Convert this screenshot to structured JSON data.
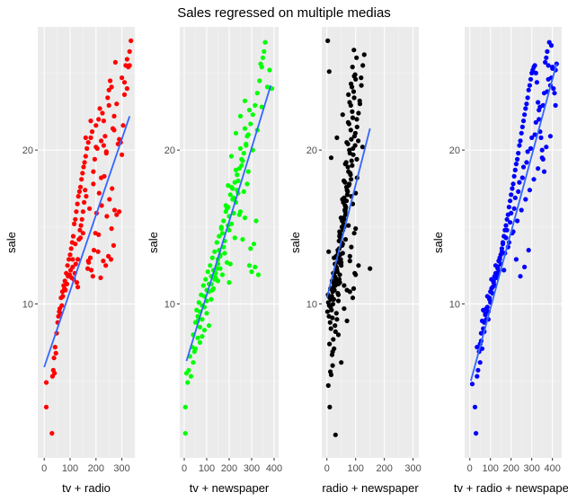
{
  "title": "Sales regressed on multiple medias",
  "colors": {
    "panel_bg": "#ebebeb",
    "grid_major": "#ffffff",
    "grid_minor": "#f5f5f5",
    "tick_text": "#4d4d4d",
    "axis_text": "#000000",
    "trend_line": "#3366ff"
  },
  "chart_data": [
    {
      "type": "scatter",
      "xlabel": "tv + radio",
      "ylabel": "sale",
      "point_color": "#ff0000",
      "xlim": [
        -25,
        350
      ],
      "ylim": [
        0,
        28
      ],
      "xticks": [
        0,
        100,
        200,
        300
      ],
      "xtick_labels": [
        "0",
        "100",
        "200",
        "300"
      ],
      "yticks": [
        10,
        20
      ],
      "ytick_labels": [
        "10",
        "20"
      ],
      "fit_line": {
        "x": [
          0,
          330
        ],
        "y": [
          5.9,
          22.2
        ]
      },
      "x": [
        8,
        8,
        30,
        32,
        35,
        38,
        40,
        42,
        45,
        48,
        52,
        55,
        58,
        60,
        62,
        65,
        68,
        70,
        72,
        75,
        78,
        80,
        82,
        85,
        88,
        90,
        92,
        95,
        98,
        100,
        102,
        104,
        106,
        108,
        110,
        112,
        114,
        116,
        118,
        120,
        122,
        124,
        126,
        128,
        130,
        132,
        134,
        136,
        138,
        140,
        142,
        144,
        146,
        148,
        150,
        152,
        154,
        156,
        158,
        160,
        162,
        165,
        168,
        170,
        172,
        175,
        178,
        180,
        182,
        185,
        188,
        190,
        192,
        195,
        198,
        200,
        202,
        205,
        208,
        210,
        212,
        215,
        218,
        220,
        222,
        225,
        228,
        230,
        232,
        235,
        238,
        240,
        242,
        245,
        248,
        250,
        252,
        255,
        258,
        260,
        262,
        265,
        268,
        270,
        272,
        275,
        280,
        285,
        290,
        295,
        300,
        305,
        310,
        315,
        320,
        325,
        330,
        335,
        120,
        140,
        160,
        180,
        200,
        220,
        240,
        260,
        280,
        150,
        170,
        190,
        210,
        230,
        250,
        270,
        290,
        110,
        130,
        300,
        310,
        320,
        330
      ],
      "y": [
        3.3,
        4.9,
        1.6,
        5.3,
        5.7,
        6.5,
        5.5,
        7.2,
        6.8,
        8.1,
        8.8,
        9.2,
        9.5,
        9.7,
        9.4,
        10.4,
        9.9,
        10.8,
        10.5,
        11.2,
        11.0,
        11.5,
        10.9,
        12.0,
        11.3,
        12.5,
        11.8,
        12.9,
        11.9,
        13.2,
        12.2,
        13.6,
        11.7,
        14.0,
        12.4,
        14.4,
        11.6,
        15.2,
        12.0,
        15.5,
        12.6,
        16.0,
        11.4,
        16.5,
        12.9,
        17.0,
        14.2,
        17.3,
        14.8,
        17.6,
        15.1,
        18.1,
        15.5,
        18.5,
        16.0,
        18.9,
        16.6,
        19.2,
        17.4,
        19.6,
        17.0,
        20.1,
        12.3,
        20.5,
        12.7,
        16.2,
        13.0,
        20.8,
        12.2,
        21.2,
        11.8,
        17.8,
        13.5,
        19.4,
        14.6,
        21.6,
        15.9,
        20.1,
        13.4,
        22.0,
        17.2,
        22.7,
        11.7,
        20.6,
        16.4,
        22.4,
        12.8,
        21.9,
        18.3,
        20.9,
        12.5,
        19.8,
        15.7,
        23.4,
        13.1,
        23.9,
        16.8,
        24.5,
        12.9,
        24.1,
        17.5,
        21.4,
        13.8,
        22.2,
        16.1,
        25.7,
        23.0,
        20.4,
        16.0,
        20.5,
        19.7,
        21.6,
        24.4,
        25.5,
        24.0,
        25.4,
        25.5,
        27.1,
        13.9,
        14.3,
        20.8,
        21.9,
        20.2,
        18.2,
        19.9,
        14.9,
        15.8,
        14.6,
        12.8,
        18.6,
        14.5,
        20.3,
        22.9,
        21.3,
        20.7,
        12.9,
        11.1,
        24.7,
        23.6,
        25.9,
        26.4
      ]
    },
    {
      "type": "scatter",
      "xlabel": "tv + newspaper",
      "ylabel": "sale",
      "point_color": "#00ff00",
      "xlim": [
        -20,
        420
      ],
      "ylim": [
        0,
        28
      ],
      "xticks": [
        0,
        100,
        200,
        300,
        400
      ],
      "xtick_labels": [
        "0",
        "100",
        "200",
        "300",
        "400"
      ],
      "yticks": [
        10,
        20
      ],
      "ytick_labels": [
        "10",
        "20"
      ],
      "fit_line": {
        "x": [
          10,
          385
        ],
        "y": [
          6.3,
          24.2
        ]
      },
      "x": [
        5,
        5,
        10,
        15,
        20,
        25,
        30,
        35,
        40,
        45,
        50,
        55,
        60,
        65,
        70,
        75,
        80,
        85,
        90,
        95,
        100,
        105,
        110,
        115,
        120,
        125,
        130,
        135,
        140,
        145,
        150,
        155,
        160,
        165,
        170,
        175,
        180,
        185,
        190,
        195,
        200,
        205,
        210,
        215,
        220,
        225,
        230,
        235,
        240,
        245,
        250,
        255,
        260,
        265,
        270,
        275,
        280,
        285,
        290,
        295,
        300,
        305,
        310,
        315,
        320,
        325,
        330,
        335,
        340,
        345,
        350,
        355,
        360,
        370,
        380,
        390,
        100,
        120,
        140,
        160,
        180,
        200,
        220,
        240,
        260,
        280,
        110,
        130,
        150,
        170,
        190,
        210,
        230,
        250,
        270,
        290,
        90,
        80,
        70,
        60,
        150,
        160,
        175,
        195,
        215,
        235,
        255,
        275,
        295,
        315,
        200,
        205,
        225,
        245,
        265,
        285,
        305,
        325,
        345,
        125,
        135,
        145,
        155,
        165,
        185,
        195,
        210,
        230,
        250,
        270,
        40,
        50,
        60,
        70,
        80,
        90,
        100,
        110,
        120,
        130
      ],
      "y": [
        1.6,
        3.3,
        5.5,
        4.9,
        5.7,
        6.6,
        5.3,
        7.2,
        8.0,
        6.9,
        8.8,
        9.6,
        9.2,
        10.1,
        9.5,
        10.6,
        9.9,
        11.2,
        10.5,
        11.6,
        10.9,
        12.1,
        11.3,
        12.5,
        11.8,
        13.0,
        12.2,
        13.4,
        11.7,
        14.0,
        12.6,
        14.4,
        13.1,
        15.0,
        11.9,
        15.4,
        13.3,
        16.0,
        12.7,
        16.3,
        14.8,
        17.1,
        15.2,
        17.5,
        15.9,
        17.9,
        16.6,
        18.4,
        17.2,
        18.8,
        16.0,
        19.4,
        14.2,
        19.8,
        15.6,
        20.4,
        17.8,
        21.0,
        12.5,
        21.7,
        12.1,
        22.3,
        13.9,
        22.9,
        15.4,
        23.7,
        11.9,
        24.5,
        25.6,
        25.4,
        26.0,
        26.4,
        27.0,
        24.1,
        25.2,
        24.0,
        9.4,
        10.3,
        12.0,
        13.2,
        14.1,
        15.7,
        16.9,
        18.0,
        19.3,
        20.9,
        8.6,
        11.0,
        12.9,
        14.6,
        16.2,
        17.6,
        18.7,
        20.1,
        21.4,
        22.6,
        8.3,
        7.9,
        7.5,
        8.9,
        11.5,
        12.3,
        13.7,
        15.1,
        16.8,
        17.4,
        19.0,
        20.3,
        13.6,
        12.4,
        11.4,
        12.6,
        14.3,
        15.8,
        17.3,
        18.6,
        20.0,
        21.3,
        22.8,
        10.9,
        11.6,
        12.3,
        13.5,
        14.9,
        16.4,
        17.7,
        19.6,
        21.1,
        22.2,
        23.2,
        6.2,
        7.1,
        7.8,
        8.5,
        9.0,
        9.8,
        10.2,
        10.8,
        11.3,
        11.8
      ]
    },
    {
      "type": "scatter",
      "xlabel": "radio + newspaper",
      "ylabel": "sale",
      "point_color": "#000000",
      "xlim": [
        -18,
        320
      ],
      "ylim": [
        0,
        28
      ],
      "xticks": [
        0,
        100,
        200,
        300
      ],
      "xtick_labels": [
        "0",
        "100",
        "200",
        "300"
      ],
      "yticks": [
        10,
        20
      ],
      "ytick_labels": [
        "10",
        "20"
      ],
      "fit_line": {
        "x": [
          0,
          150
        ],
        "y": [
          10.4,
          21.4
        ]
      },
      "x": [
        2,
        5,
        8,
        10,
        12,
        15,
        18,
        20,
        22,
        25,
        28,
        30,
        32,
        35,
        38,
        40,
        42,
        45,
        48,
        50,
        52,
        55,
        58,
        60,
        62,
        65,
        68,
        70,
        72,
        75,
        78,
        80,
        82,
        85,
        88,
        90,
        92,
        95,
        98,
        100,
        105,
        110,
        115,
        120,
        125,
        130,
        150,
        5,
        10,
        15,
        20,
        25,
        30,
        35,
        40,
        45,
        50,
        55,
        60,
        65,
        70,
        75,
        80,
        85,
        90,
        95,
        100,
        8,
        12,
        18,
        22,
        28,
        33,
        38,
        43,
        48,
        53,
        58,
        63,
        68,
        73,
        78,
        83,
        88,
        93,
        98,
        103,
        3,
        7,
        13,
        17,
        23,
        27,
        33,
        37,
        43,
        47,
        53,
        57,
        63,
        67,
        73,
        77,
        83,
        87,
        93,
        97,
        6,
        11,
        16,
        21,
        26,
        31,
        36,
        41,
        46,
        51,
        56,
        61,
        66,
        71,
        76,
        81,
        86,
        91,
        96,
        9,
        14,
        19,
        24,
        29,
        34,
        39,
        44,
        49,
        54,
        59,
        64,
        69,
        74,
        79,
        84,
        89,
        94,
        99,
        104,
        109,
        114,
        119,
        4,
        24,
        44,
        64,
        84,
        104,
        124,
        20,
        40,
        60,
        80,
        100,
        25,
        45,
        65,
        85,
        105,
        15,
        35,
        55,
        75,
        95,
        30,
        50,
        70,
        90,
        110,
        40,
        60,
        80,
        100
      ],
      "y": [
        9.5,
        10.1,
        9.9,
        10.4,
        11.0,
        10.3,
        11.5,
        10.8,
        12.0,
        11.3,
        12.6,
        11.7,
        13.1,
        12.2,
        13.5,
        10.6,
        14.1,
        11.9,
        14.5,
        12.5,
        15.0,
        13.3,
        15.6,
        11.2,
        16.1,
        14.2,
        16.7,
        10.9,
        17.3,
        15.1,
        17.8,
        12.8,
        18.4,
        13.7,
        19.0,
        16.5,
        19.7,
        14.6,
        20.3,
        17.2,
        21.5,
        22.4,
        23.0,
        24.2,
        25.5,
        26.2,
        12.3,
        4.7,
        3.3,
        5.4,
        6.0,
        7.1,
        8.2,
        9.0,
        10.2,
        11.4,
        12.7,
        13.9,
        15.0,
        16.2,
        17.4,
        18.6,
        19.8,
        20.7,
        22.1,
        23.4,
        24.6,
        25.1,
        5.6,
        6.7,
        7.7,
        8.6,
        9.4,
        10.7,
        11.6,
        12.9,
        13.8,
        15.2,
        16.4,
        17.6,
        18.9,
        20.0,
        21.3,
        22.5,
        23.8,
        24.9,
        26.0,
        27.1,
        9.2,
        9.8,
        10.5,
        11.1,
        11.8,
        12.4,
        13.0,
        13.6,
        14.3,
        15.4,
        16.6,
        17.9,
        19.2,
        20.4,
        21.7,
        22.9,
        24.1,
        11.0,
        12.0,
        13.4,
        8.8,
        9.6,
        10.0,
        10.9,
        11.5,
        12.1,
        12.7,
        13.2,
        14.0,
        14.8,
        15.5,
        16.3,
        17.1,
        17.7,
        18.5,
        19.3,
        20.1,
        20.9,
        7.4,
        8.4,
        9.1,
        10.3,
        11.2,
        12.3,
        13.3,
        14.4,
        15.6,
        16.8,
        18.0,
        19.1,
        20.5,
        21.8,
        23.1,
        24.3,
        25.4,
        26.5,
        21.1,
        22.0,
        20.6,
        23.2,
        24.7,
        10.6,
        12.0,
        14.7,
        16.0,
        18.1,
        19.4,
        20.2,
        6.9,
        8.0,
        9.7,
        10.8,
        11.9,
        13.0,
        14.5,
        15.8,
        17.0,
        18.2,
        19.5,
        20.8,
        22.3,
        23.6,
        24.8,
        1.5,
        6.2,
        8.9,
        10.4,
        12.5,
        11.3,
        16.9,
        13.1,
        14.9
      ],
      "note_hidden": ""
    },
    {
      "type": "scatter",
      "xlabel": "tv + radio + newspaper",
      "ylabel": "sale",
      "point_color": "#0000ff",
      "xlim": [
        -25,
        445
      ],
      "ylim": [
        0,
        28
      ],
      "xticks": [
        0,
        100,
        200,
        300,
        400
      ],
      "xtick_labels": [
        "0",
        "100",
        "200",
        "300",
        "400"
      ],
      "yticks": [
        10,
        20
      ],
      "ytick_labels": [
        "10",
        "20"
      ],
      "fit_line": {
        "x": [
          5,
          420
        ],
        "y": [
          5.0,
          25.6
        ]
      },
      "x": [
        12,
        25,
        30,
        35,
        40,
        45,
        50,
        55,
        60,
        65,
        70,
        75,
        80,
        85,
        90,
        95,
        100,
        105,
        110,
        115,
        120,
        125,
        130,
        135,
        140,
        145,
        150,
        155,
        160,
        165,
        170,
        175,
        180,
        185,
        190,
        195,
        200,
        205,
        210,
        215,
        220,
        225,
        230,
        235,
        240,
        245,
        250,
        255,
        260,
        265,
        270,
        275,
        280,
        285,
        290,
        295,
        300,
        305,
        310,
        315,
        320,
        325,
        330,
        335,
        340,
        345,
        350,
        355,
        360,
        365,
        370,
        375,
        380,
        385,
        390,
        395,
        400,
        405,
        410,
        415,
        420,
        35,
        55,
        75,
        95,
        115,
        135,
        155,
        175,
        195,
        215,
        235,
        255,
        275,
        295,
        315,
        335,
        355,
        375,
        395,
        415,
        60,
        80,
        100,
        120,
        140,
        160,
        180,
        200,
        220,
        240,
        260,
        280,
        300,
        320,
        340,
        360,
        380,
        400,
        110,
        130,
        150,
        170,
        190,
        210,
        230,
        250,
        270,
        290,
        310,
        330,
        350,
        370,
        390,
        90,
        70,
        50,
        65,
        85,
        105,
        125,
        145,
        165,
        185,
        205,
        225,
        245,
        265,
        285
      ],
      "y": [
        4.8,
        3.3,
        1.6,
        5.3,
        5.7,
        6.9,
        6.2,
        7.6,
        7.1,
        8.4,
        8.8,
        9.3,
        9.0,
        9.8,
        9.5,
        10.4,
        10.1,
        11.0,
        10.7,
        11.5,
        11.2,
        12.0,
        11.7,
        12.4,
        12.1,
        12.9,
        13.2,
        13.6,
        14.0,
        14.4,
        14.8,
        15.1,
        15.5,
        15.8,
        16.3,
        16.7,
        17.1,
        17.5,
        17.8,
        18.3,
        18.7,
        19.1,
        19.4,
        19.8,
        20.3,
        20.6,
        21.1,
        21.5,
        21.9,
        22.3,
        22.7,
        23.0,
        23.4,
        23.9,
        24.2,
        24.6,
        25.0,
        25.2,
        25.4,
        25.5,
        25.0,
        24.4,
        23.1,
        22.6,
        21.2,
        20.8,
        20.0,
        19.4,
        18.6,
        25.7,
        26.0,
        26.4,
        25.5,
        27.0,
        24.2,
        26.8,
        25.4,
        24.0,
        23.7,
        22.9,
        25.6,
        7.2,
        8.1,
        9.4,
        10.3,
        11.4,
        12.3,
        13.4,
        14.3,
        15.3,
        16.2,
        17.3,
        18.2,
        19.2,
        20.1,
        21.0,
        22.0,
        22.9,
        23.8,
        24.7,
        25.2,
        8.9,
        9.7,
        10.8,
        11.8,
        12.8,
        13.9,
        14.8,
        15.9,
        16.9,
        17.9,
        18.9,
        19.9,
        20.8,
        21.8,
        22.8,
        23.7,
        24.6,
        25.3,
        11.1,
        11.9,
        12.6,
        13.3,
        14.0,
        14.7,
        15.4,
        16.1,
        16.8,
        17.4,
        18.1,
        18.8,
        19.5,
        20.2,
        20.9,
        9.0,
        8.2,
        7.4,
        9.6,
        10.5,
        11.6,
        12.5,
        13.0,
        12.2,
        13.7,
        14.6,
        12.9,
        11.8,
        12.4,
        13.5
      ]
    }
  ]
}
